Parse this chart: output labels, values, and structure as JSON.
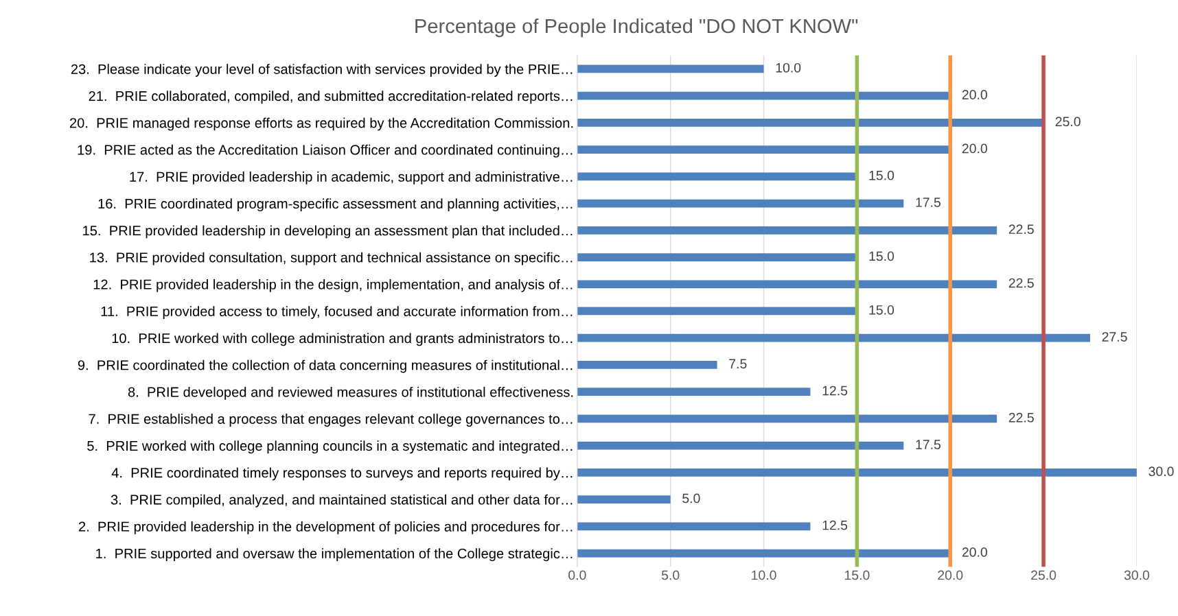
{
  "chart_data": {
    "type": "bar",
    "orientation": "horizontal",
    "title": "Percentage of People Indicated \"DO NOT KNOW\"",
    "categories": [
      "23.  Please indicate your level of satisfaction with services provided by the PRIE…",
      "21.  PRIE collaborated, compiled, and submitted accreditation-related reports…",
      "20.  PRIE managed response efforts as required by the Accreditation Commission.",
      "19.  PRIE acted as the Accreditation Liaison Officer and coordinated continuing…",
      "17.  PRIE provided leadership in academic, support and administrative…",
      "16.  PRIE coordinated program-specific assessment and planning activities,…",
      "15.  PRIE provided leadership in developing an assessment plan that included…",
      "13.  PRIE provided consultation, support and technical assistance on specific…",
      "12.  PRIE provided leadership in the design, implementation, and analysis of…",
      "11.  PRIE provided access to timely, focused and accurate information from…",
      "10.  PRIE worked with college administration and grants administrators to…",
      "9.  PRIE coordinated the collection of data concerning measures of institutional…",
      "8.  PRIE developed and reviewed measures of institutional effectiveness.",
      "7.  PRIE established a process that engages relevant college governances to…",
      "5.  PRIE worked with college planning councils in a systematic and integrated…",
      "4.  PRIE coordinated timely responses to surveys and reports required by…",
      "3.  PRIE compiled, analyzed, and maintained statistical and other data for…",
      "2.  PRIE provided leadership in the development of policies and procedures for…",
      "1.  PRIE supported and oversaw the implementation of the College strategic…"
    ],
    "values": [
      10.0,
      20.0,
      25.0,
      20.0,
      15.0,
      17.5,
      22.5,
      15.0,
      22.5,
      15.0,
      27.5,
      7.5,
      12.5,
      22.5,
      17.5,
      30.0,
      5.0,
      12.5,
      20.0
    ],
    "value_labels": [
      "10.0",
      "20.0",
      "25.0",
      "20.0",
      "15.0",
      "17.5",
      "22.5",
      "15.0",
      "22.5",
      "15.0",
      "27.5",
      "7.5",
      "12.5",
      "22.5",
      "17.5",
      "30.0",
      "5.0",
      "12.5",
      "20.0"
    ],
    "color": "#4f81bd",
    "xlim": [
      0,
      30
    ],
    "xticks": [
      {
        "value": 0,
        "label": "0.0"
      },
      {
        "value": 5,
        "label": "5.0"
      },
      {
        "value": 10,
        "label": "10.0"
      },
      {
        "value": 15,
        "label": "15.0"
      },
      {
        "value": 20,
        "label": "20.0"
      },
      {
        "value": 25,
        "label": "25.0"
      },
      {
        "value": 30,
        "label": "30.0"
      }
    ],
    "grid": "x",
    "ref_lines": [
      {
        "axis": "x",
        "value": 15,
        "color": "#9bbb59"
      },
      {
        "axis": "x",
        "value": 20,
        "color": "#f79646"
      },
      {
        "axis": "x",
        "value": 25,
        "color": "#c0504d"
      }
    ]
  }
}
